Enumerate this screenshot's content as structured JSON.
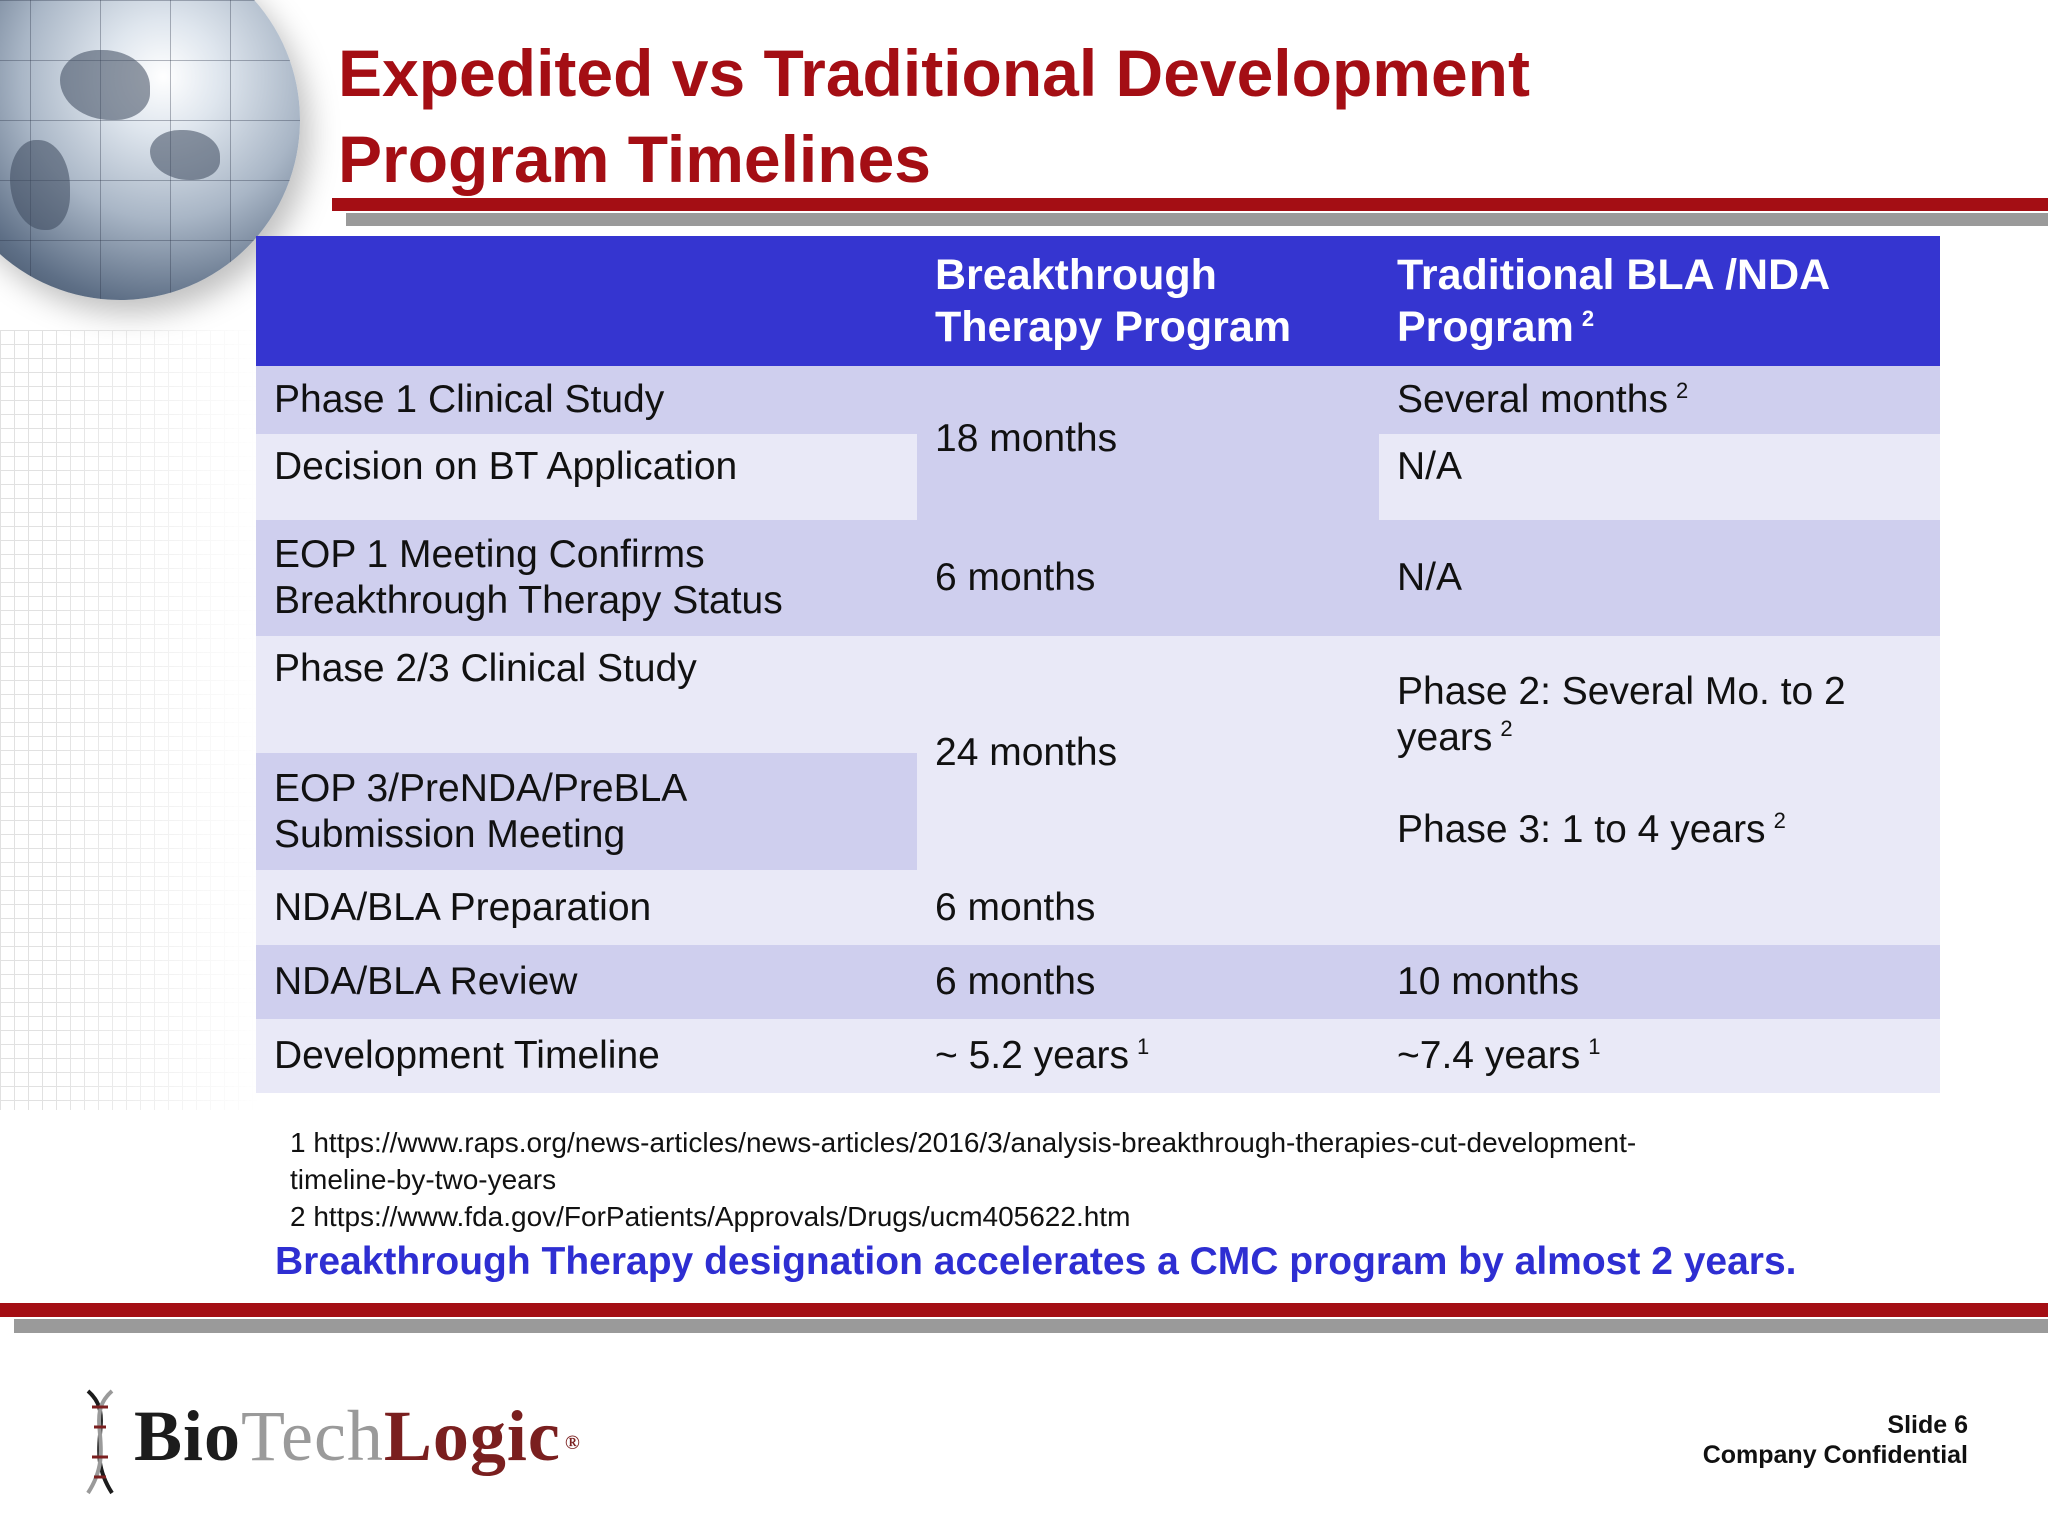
{
  "title_line1": "Expedited vs Traditional Development",
  "title_line2": "Program Timelines",
  "table": {
    "header": {
      "col1": "",
      "col2_line1": "Breakthrough",
      "col2_line2": "Therapy Program",
      "col3_line1": "Traditional BLA /NDA",
      "col3_line2": "Program",
      "col3_sup": "2"
    },
    "rows": {
      "phase1": "Phase 1 Clinical Study",
      "decision": "Decision on BT Application",
      "eop1_line1": "EOP 1 Meeting Confirms",
      "eop1_line2": "Breakthrough Therapy Status",
      "phase23": "Phase 2/3 Clinical Study",
      "eop3_line1": "EOP 3/PreNDA/PreBLA",
      "eop3_line2": "Submission Meeting",
      "ndabla_prep": "NDA/BLA Preparation",
      "ndabla_review": "NDA/BLA Review",
      "dev_timeline": "Development Timeline"
    },
    "bt": {
      "phase1_decision": "18 months",
      "eop1": "6 months",
      "phase23_eop3": "24 months",
      "ndabla_prep": "6 months",
      "ndabla_review": "6 months",
      "dev_timeline": "~ 5.2 years",
      "dev_timeline_sup": "1"
    },
    "trad": {
      "phase1": "Several months",
      "phase1_sup": "2",
      "decision": "N/A",
      "eop1": "N/A",
      "phase2_line1": "Phase 2: Several Mo. to 2",
      "phase2_line2": "years",
      "phase2_sup": "2",
      "phase3": "Phase 3: 1 to 4 years",
      "phase3_sup": "2",
      "ndabla_review": "10 months",
      "dev_timeline": "~7.4 years",
      "dev_timeline_sup": "1"
    }
  },
  "notes": {
    "note1_line1": "1 https://www.raps.org/news-articles/news-articles/2016/3/analysis-breakthrough-therapies-cut-development-",
    "note1_line2": "timeline-by-two-years",
    "note2": "2 https://www.fda.gov/ForPatients/Approvals/Drugs/ucm405622.htm"
  },
  "conclusion": "Breakthrough Therapy designation accelerates a CMC program by almost 2 years.",
  "logo": {
    "bio": "Bio",
    "tech": "Tech",
    "logic": "Logic",
    "reg": "®"
  },
  "slide_number": "Slide 6",
  "confidential": "Company Confidential",
  "colors": {
    "title_red": "#a40e14",
    "header_blue": "#3535d0",
    "row_dark": "#cfcfee",
    "row_light": "#e9e9f7",
    "conclusion_blue": "#2e2ed2"
  }
}
